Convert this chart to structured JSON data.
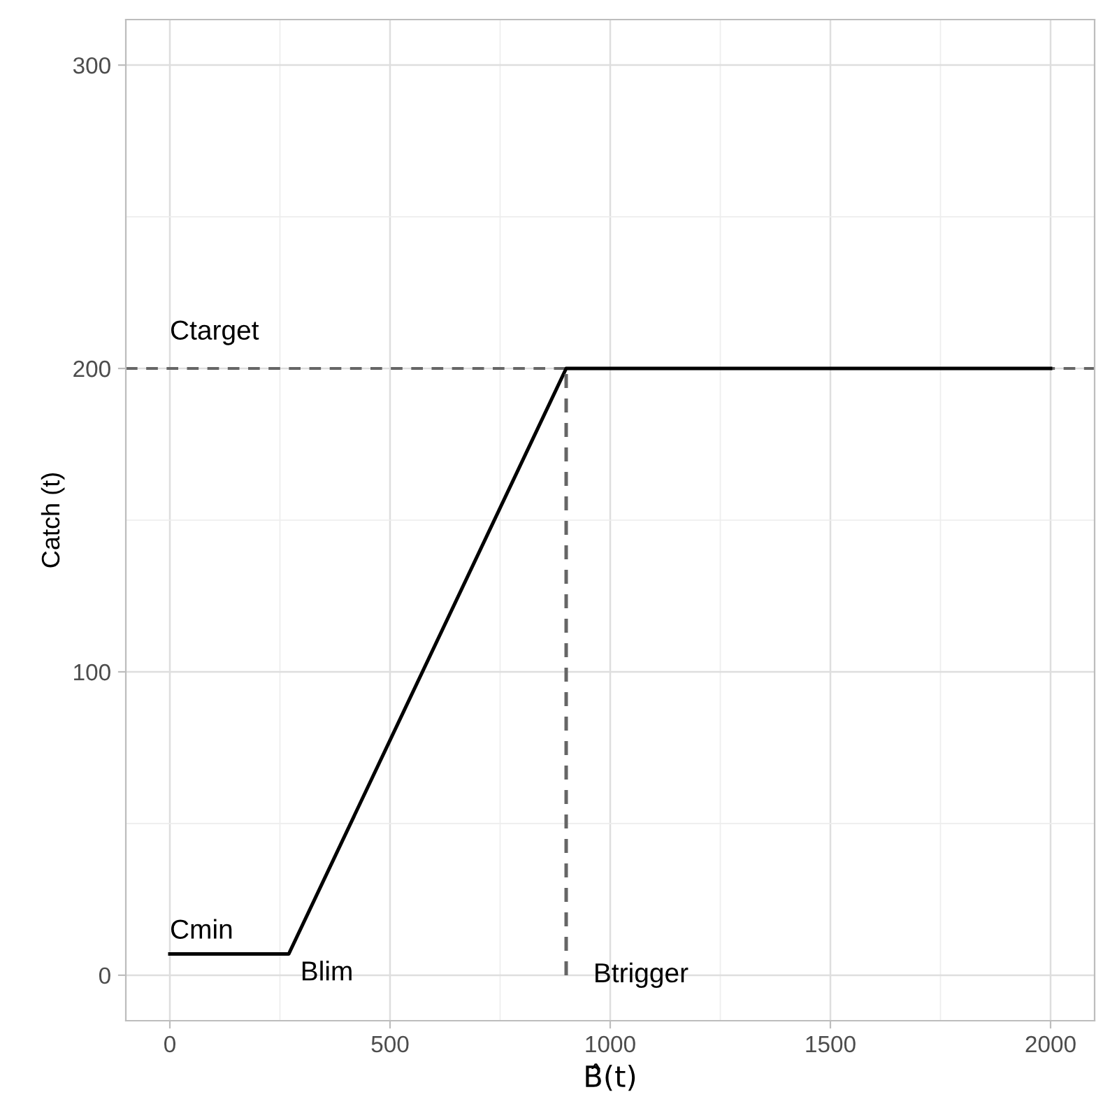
{
  "chart_data": {
    "type": "line",
    "xlabel": "B̂(t)",
    "ylabel": "Catch (t)",
    "x": [
      0,
      270,
      900,
      2000
    ],
    "series": [
      {
        "color": "#000000",
        "values": [
          7,
          7,
          200,
          200
        ],
        "line_style": "solid"
      },
      {
        "color": "#666666",
        "x": [
          900,
          900
        ],
        "values": [
          0,
          200
        ],
        "line_style": "dashed"
      }
    ],
    "ref_lines": [
      {
        "axis": "y",
        "value": 200,
        "color": "#666666",
        "line_style": "dashed"
      }
    ],
    "annotations": [
      {
        "text": "Ctarget",
        "x": 0,
        "y": 200
      },
      {
        "text": "Cmin",
        "x": 0,
        "y": 7
      },
      {
        "text": "Blim",
        "x": 270,
        "y": 7
      },
      {
        "text": "Btrigger",
        "x": 900,
        "y": 0
      }
    ],
    "xlim": [
      -100,
      2100
    ],
    "ylim": [
      -15,
      315
    ],
    "xticks": [
      0,
      500,
      1000,
      1500,
      2000
    ],
    "yticks": [
      0,
      100,
      200,
      300
    ],
    "grid": true,
    "legend": false,
    "marker": "none"
  }
}
